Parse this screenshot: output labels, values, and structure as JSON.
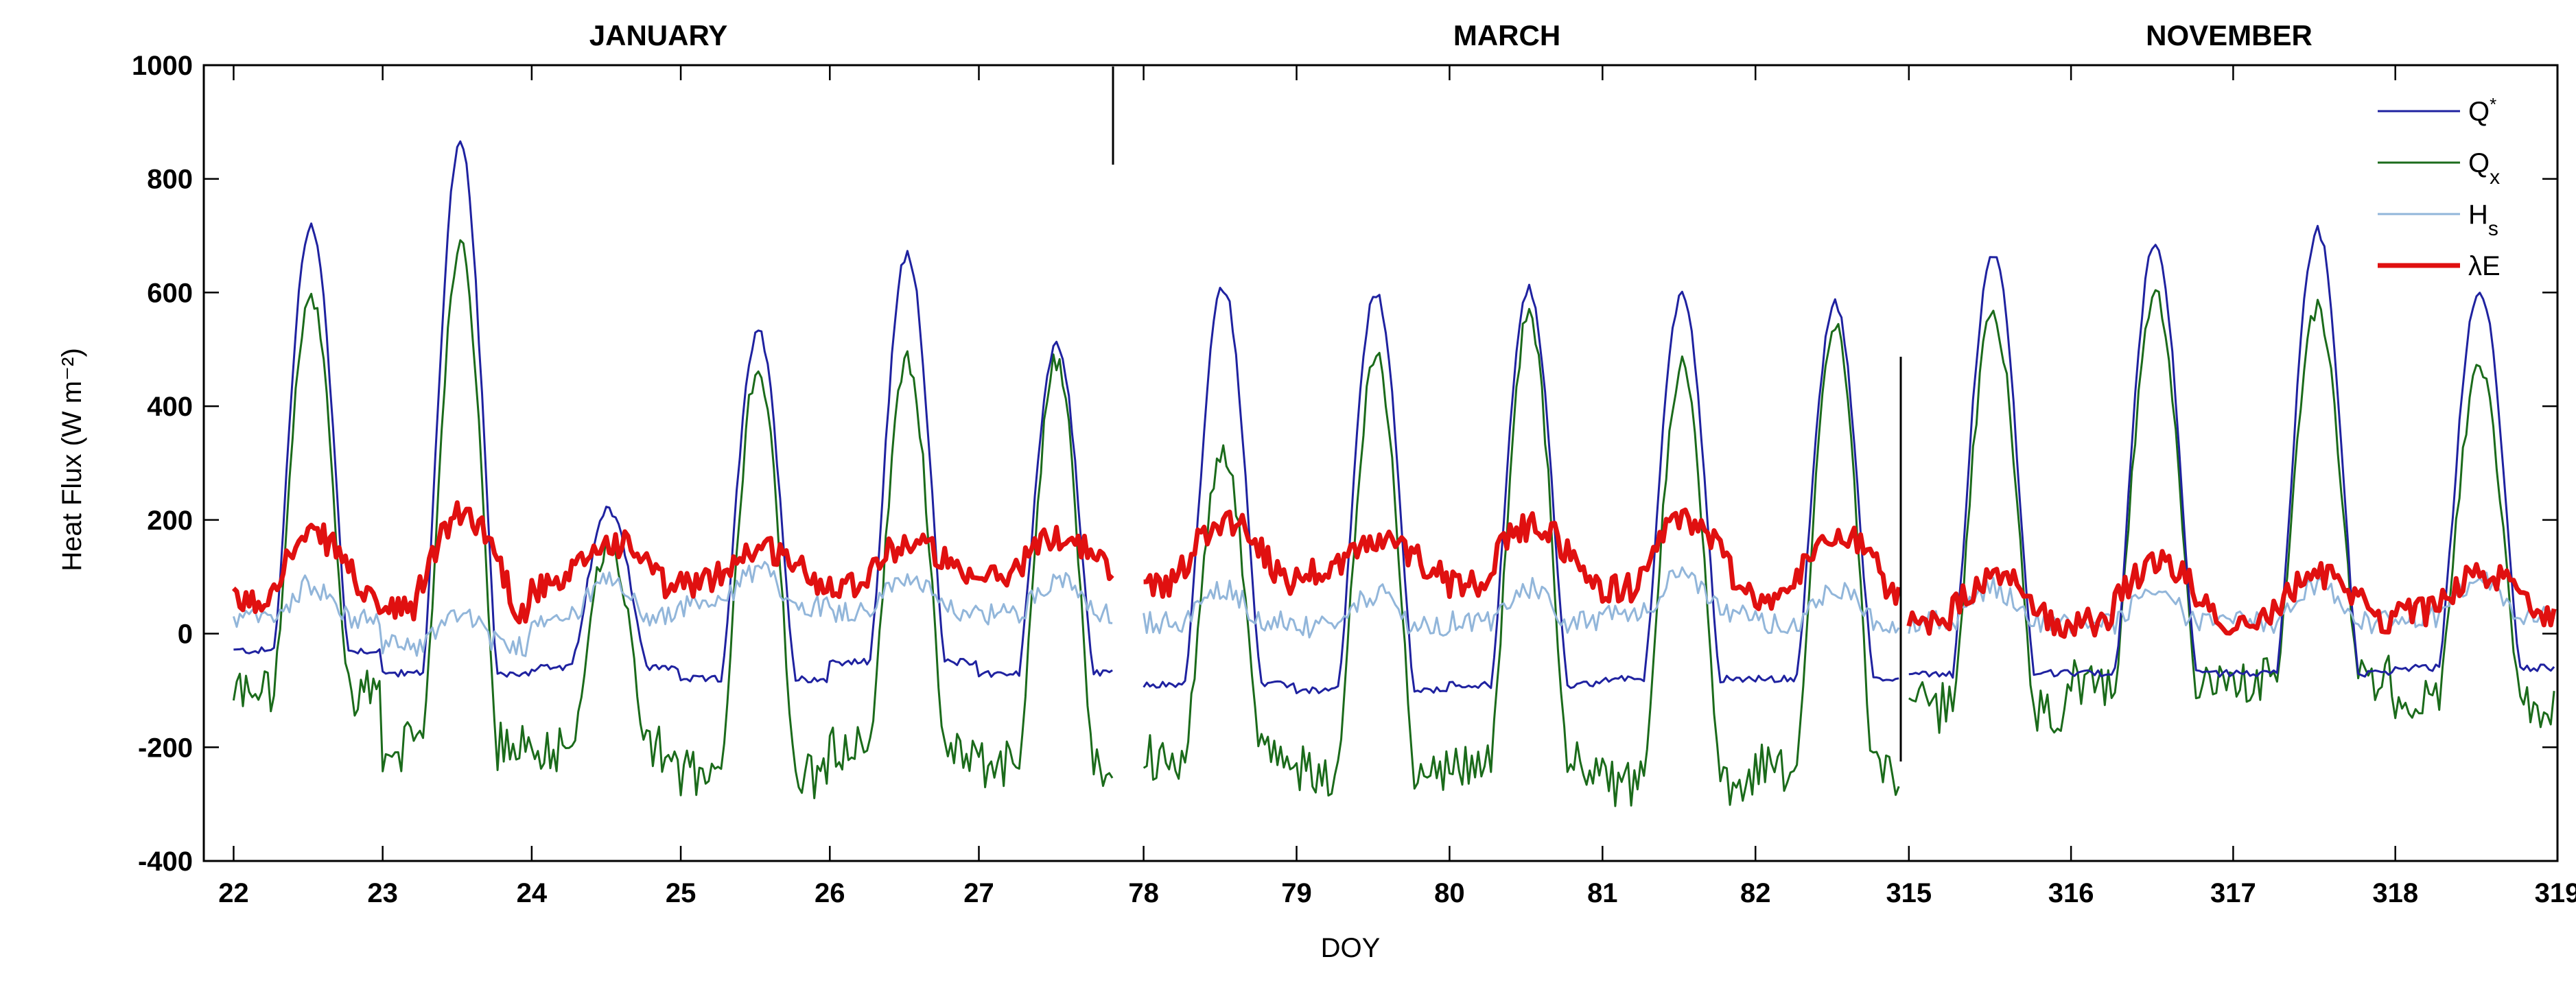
{
  "chart_data": {
    "type": "line",
    "title": "",
    "ylabel": "Heat Flux (W m⁻²)",
    "xlabel": "DOY",
    "ylim": [
      -400,
      1000
    ],
    "yticks": [
      1000,
      800,
      600,
      400,
      200,
      0,
      -200,
      -400
    ],
    "grid": false,
    "legend_position": "top-right",
    "series_styles": [
      {
        "key": "Qstar",
        "label": "Q",
        "label_sup": "*",
        "label_sub": "",
        "color": "#1f22a0",
        "width": 3
      },
      {
        "key": "Qx",
        "label": "Q",
        "label_sup": "",
        "label_sub": "x",
        "color": "#1b6b1b",
        "width": 3
      },
      {
        "key": "Hs",
        "label": "H",
        "label_sup": "",
        "label_sub": "s",
        "color": "#92b6da",
        "width": 3
      },
      {
        "key": "LE",
        "label": "λE",
        "label_sup": "",
        "label_sub": "",
        "color": "#e01010",
        "width": 7
      }
    ],
    "panels": [
      {
        "title": "JANUARY",
        "xlim": [
          21.8,
          27.9
        ],
        "ticks": [
          22,
          23,
          24,
          25,
          26,
          27
        ],
        "days": [
          {
            "day": 22,
            "peak_Qstar": 720,
            "peak_Qx": 590,
            "night_Qstar": -30,
            "night_Qx": -100,
            "LE_base": 55,
            "LE_peak": 170,
            "Hs_base": 25
          },
          {
            "day": 23,
            "peak_Qstar": 860,
            "peak_Qx": 680,
            "night_Qstar": -70,
            "night_Qx": -200,
            "LE_base": 40,
            "LE_peak": 210,
            "Hs_base": -20
          },
          {
            "day": 24,
            "peak_Qstar": 220,
            "peak_Qx": 160,
            "night_Qstar": -60,
            "night_Qx": -200,
            "LE_base": 80,
            "LE_peak": 160,
            "Hs_base": 30
          },
          {
            "day": 25,
            "peak_Qstar": 530,
            "peak_Qx": 470,
            "night_Qstar": -80,
            "night_Qx": -250,
            "LE_base": 90,
            "LE_peak": 150,
            "Hs_base": 50
          },
          {
            "day": 26,
            "peak_Qstar": 670,
            "peak_Qx": 480,
            "night_Qstar": -50,
            "night_Qx": -200,
            "LE_base": 90,
            "LE_peak": 160,
            "Hs_base": 40
          },
          {
            "day": 27,
            "peak_Qstar": 510,
            "peak_Qx": 480,
            "night_Qstar": -70,
            "night_Qx": -230,
            "LE_base": 100,
            "LE_peak": 170,
            "Hs_base": 35
          }
        ]
      },
      {
        "title": "MARCH",
        "xlim": [
          77.8,
          82.95
        ],
        "ticks": [
          78,
          79,
          80,
          81,
          82
        ],
        "days": [
          {
            "day": 78,
            "peak_Qstar": 610,
            "peak_Qx": 320,
            "night_Qstar": -90,
            "night_Qx": -220,
            "LE_base": 90,
            "LE_peak": 200,
            "Hs_base": 20
          },
          {
            "day": 79,
            "peak_Qstar": 600,
            "peak_Qx": 490,
            "night_Qstar": -100,
            "night_Qx": -240,
            "LE_base": 110,
            "LE_peak": 160,
            "Hs_base": 10
          },
          {
            "day": 80,
            "peak_Qstar": 605,
            "peak_Qx": 560,
            "night_Qstar": -90,
            "night_Qx": -230,
            "LE_base": 90,
            "LE_peak": 190,
            "Hs_base": 20
          },
          {
            "day": 81,
            "peak_Qstar": 600,
            "peak_Qx": 470,
            "night_Qstar": -80,
            "night_Qx": -260,
            "LE_base": 80,
            "LE_peak": 200,
            "Hs_base": 40
          },
          {
            "day": 82,
            "peak_Qstar": 580,
            "peak_Qx": 550,
            "night_Qstar": -80,
            "night_Qx": -240,
            "LE_base": 60,
            "LE_peak": 180,
            "Hs_base": 20
          }
        ]
      },
      {
        "title": "NOVEMBER",
        "xlim": [
          314.95,
          319.0
        ],
        "ticks": [
          315,
          316,
          317,
          318,
          319
        ],
        "days": [
          {
            "day": 315,
            "peak_Qstar": 670,
            "peak_Qx": 560,
            "night_Qstar": -70,
            "night_Qx": -130,
            "LE_base": 15,
            "LE_peak": 95,
            "Hs_base": 20
          },
          {
            "day": 316,
            "peak_Qstar": 690,
            "peak_Qx": 590,
            "night_Qstar": -70,
            "night_Qx": -90,
            "LE_base": 20,
            "LE_peak": 120,
            "Hs_base": 15
          },
          {
            "day": 317,
            "peak_Qstar": 710,
            "peak_Qx": 570,
            "night_Qstar": -70,
            "night_Qx": -80,
            "LE_base": 25,
            "LE_peak": 100,
            "Hs_base": 20
          },
          {
            "day": 318,
            "peak_Qstar": 605,
            "peak_Qx": 460,
            "night_Qstar": -60,
            "night_Qx": -120,
            "LE_base": 40,
            "LE_peak": 100,
            "Hs_base": 30
          }
        ]
      }
    ]
  }
}
